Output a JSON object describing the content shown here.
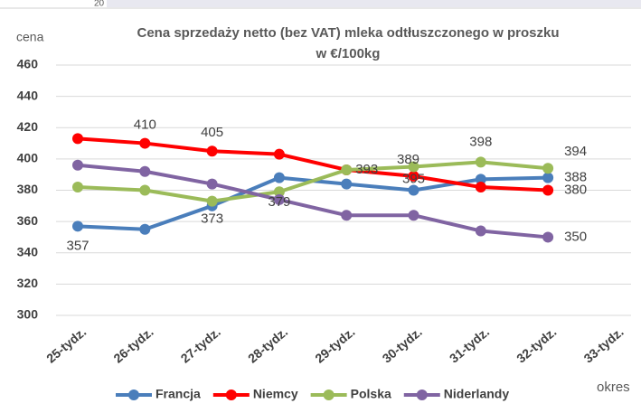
{
  "top_fragment": "20",
  "chart_data": {
    "type": "line",
    "title": [
      "Cena sprzedaży netto (bez VAT) mleka odtłuszczonego w proszku",
      "w €/100kg"
    ],
    "y_label": "cena",
    "x_label": "okres",
    "categories": [
      "25-tydz.",
      "26-tydz.",
      "27-tydz.",
      "28-tydz.",
      "29-tydz.",
      "30-tydz.",
      "31-tydz.",
      "32-tydz.",
      "33-tydz."
    ],
    "ylim": [
      300,
      460
    ],
    "yticks": [
      300,
      320,
      340,
      360,
      380,
      400,
      420,
      440,
      460
    ],
    "grid": true,
    "legend": "bottom",
    "series": [
      {
        "name": "Francja",
        "color": "#4a7ebb",
        "values": [
          357,
          355,
          370,
          388,
          384,
          380,
          387,
          388,
          null
        ],
        "value_labels": [
          "357",
          null,
          null,
          null,
          null,
          null,
          null,
          "388",
          null
        ]
      },
      {
        "name": "Niemcy",
        "color": "#ff0000",
        "values": [
          413,
          410,
          405,
          403,
          393,
          389,
          382,
          380,
          null
        ],
        "value_labels": [
          null,
          "410",
          "405",
          null,
          "393",
          "389",
          null,
          "380",
          null
        ]
      },
      {
        "name": "Polska",
        "color": "#9bbb59",
        "values": [
          382,
          380,
          373,
          379,
          393,
          395,
          398,
          394,
          null
        ],
        "value_labels": [
          null,
          null,
          "373",
          "379",
          null,
          "395",
          "398",
          "394",
          null
        ]
      },
      {
        "name": "Niderlandy",
        "color": "#8064a2",
        "values": [
          396,
          392,
          384,
          374,
          364,
          364,
          354,
          350,
          null
        ],
        "value_labels": [
          null,
          null,
          null,
          null,
          null,
          null,
          null,
          "350",
          null
        ]
      }
    ]
  }
}
